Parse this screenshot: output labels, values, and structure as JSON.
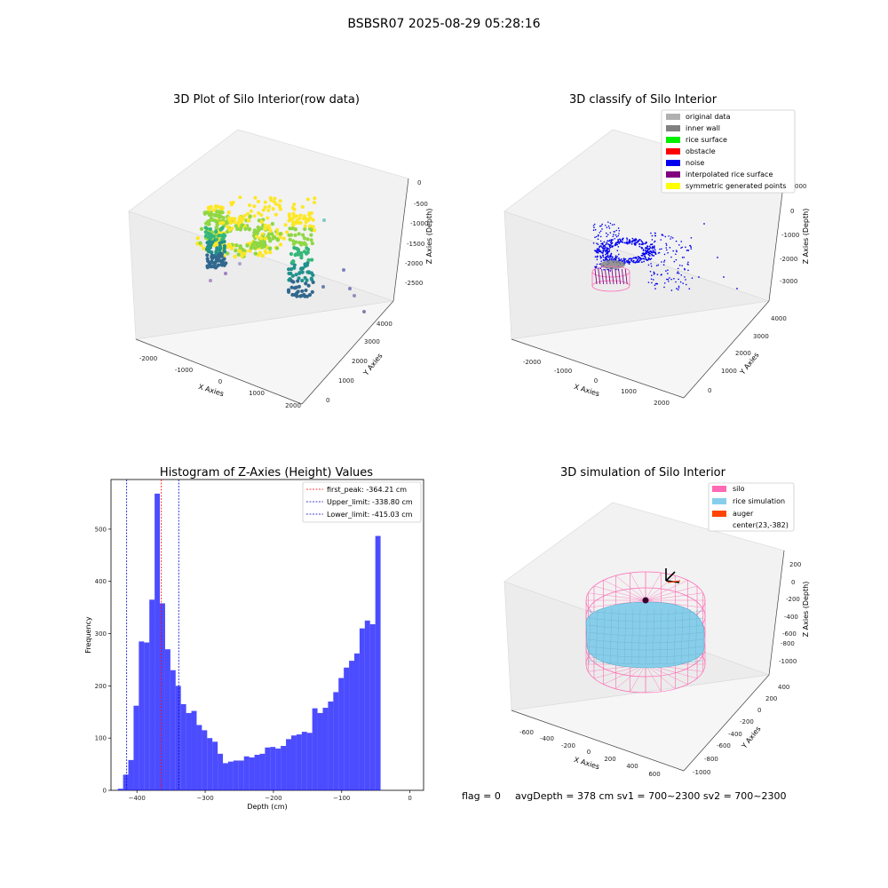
{
  "figure": {
    "suptitle": "BSBSR07 2025-08-29 05:28:16",
    "footer": {
      "flag": "flag = 0",
      "metrics": "avgDepth = 378 cm  sv1 = 700~2300  sv2 = 700~2300"
    }
  },
  "panels": {
    "raw": {
      "title": "3D Plot of Silo Interior(row data)",
      "xlabel": "X Axies",
      "ylabel": "Y Axies",
      "zlabel": "Z Axies (Depth)",
      "xticks": [
        "-2000",
        "-1000",
        "0",
        "1000",
        "2000"
      ],
      "yticks": [
        "0",
        "1000",
        "2000",
        "3000",
        "4000"
      ],
      "zticks": [
        "0",
        "-500",
        "-1000",
        "-1500",
        "-2000",
        "-2500"
      ]
    },
    "classify": {
      "title": "3D classify of Silo Interior",
      "xlabel": "X Axies",
      "ylabel": "Y Axies",
      "zlabel": "Z Axies (Depth)",
      "xticks": [
        "-2000",
        "-1000",
        "0",
        "1000",
        "2000"
      ],
      "yticks": [
        "0",
        "1000",
        "2000",
        "3000",
        "4000"
      ],
      "zticks": [
        "000",
        "0",
        "-1000",
        "-2000",
        "-3000"
      ],
      "legend": [
        {
          "label": "original data",
          "color": "#b0b0b0"
        },
        {
          "label": "inner wall",
          "color": "#808080"
        },
        {
          "label": "rice surface",
          "color": "#00ee00"
        },
        {
          "label": "obstacle",
          "color": "#ff0000"
        },
        {
          "label": "noise",
          "color": "#0000ee"
        },
        {
          "label": "interpolated rice surface",
          "color": "#800080"
        },
        {
          "label": "symmetric generated points",
          "color": "#ffff00"
        }
      ]
    },
    "simulation": {
      "title": "3D simulation of Silo Interior",
      "xlabel": "X Axies",
      "ylabel": "Y Axies",
      "zlabel": "Z Axies (Depth)",
      "xticks": [
        "-600",
        "-400",
        "-200",
        "0",
        "200",
        "400",
        "600"
      ],
      "yticks": [
        "-1000",
        "-800",
        "-600",
        "-400",
        "-200",
        "0",
        "200",
        "400"
      ],
      "zticks": [
        "200",
        "0",
        "-200",
        "-400",
        "-600",
        "-800",
        "-1000"
      ],
      "legend": [
        {
          "label": "silo",
          "color": "#ff69b4"
        },
        {
          "label": "rice simulation",
          "color": "#87ceeb"
        },
        {
          "label": "auger",
          "color": "#ff4500"
        },
        {
          "label": "center(23,-382)",
          "color": ""
        }
      ],
      "colors": {
        "silo": "#ff69b4",
        "rice": "#87ceeb",
        "auger": "#ff4500"
      }
    }
  },
  "chart_data": {
    "type": "bar",
    "title": "Histogram of Z-Axies (Height) Values",
    "xlabel": "Depth (cm)",
    "ylabel": "Frequency",
    "xlim": [
      -438,
      20
    ],
    "ylim": [
      0,
      595
    ],
    "xticks": [
      -400,
      -300,
      -200,
      -100,
      0
    ],
    "yticks": [
      0,
      100,
      200,
      300,
      400,
      500
    ],
    "bin_start": -428,
    "bin_width": 7.7,
    "values": [
      3,
      30,
      58,
      162,
      285,
      283,
      365,
      568,
      358,
      270,
      230,
      200,
      165,
      148,
      152,
      125,
      115,
      100,
      93,
      70,
      52,
      55,
      57,
      57,
      65,
      63,
      68,
      70,
      82,
      83,
      80,
      85,
      98,
      105,
      107,
      112,
      110,
      157,
      148,
      158,
      170,
      188,
      215,
      235,
      248,
      262,
      310,
      325,
      318,
      487
    ],
    "bar_color": "#0000ff",
    "bar_alpha": 0.7,
    "lines": [
      {
        "label": "first_peak: -364.21 cm",
        "x": -364.21,
        "color": "#ff0000"
      },
      {
        "label": "Upper_limit: -338.80 cm",
        "x": -338.8,
        "color": "#0000cc"
      },
      {
        "label": "Lower_limit: -415.03 cm",
        "x": -415.03,
        "color": "#0000cc"
      }
    ]
  }
}
